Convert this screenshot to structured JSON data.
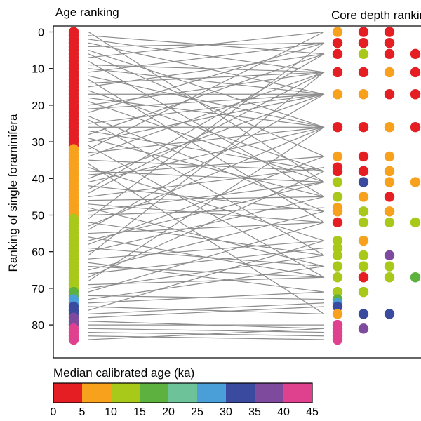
{
  "chart_data": {
    "type": "scatter",
    "title_left": "Age ranking",
    "title_right": "Core depth ranking",
    "ylabel": "Ranking of single foraminifera",
    "ylim": [
      -1,
      86
    ],
    "yticks": [
      0,
      10,
      20,
      30,
      40,
      50,
      60,
      70,
      80
    ],
    "age_rank_count": 85,
    "age_bins": [
      {
        "from": 0,
        "to": 31,
        "color": "#e41e22"
      },
      {
        "from": 32,
        "to": 50,
        "color": "#f7a11d"
      },
      {
        "from": 51,
        "to": 70,
        "color": "#a8c91a"
      },
      {
        "from": 71,
        "to": 72,
        "color": "#5db13e"
      },
      {
        "from": 73,
        "to": 74,
        "color": "#4a9fd8"
      },
      {
        "from": 75,
        "to": 77,
        "color": "#3a4a9e"
      },
      {
        "from": 78,
        "to": 80,
        "color": "#7d4a9e"
      },
      {
        "from": 81,
        "to": 84,
        "color": "#e0418f"
      }
    ],
    "depth_ranks": [
      {
        "rank": 0,
        "colors": [
          "#f7a11d",
          "#e41e22",
          "#e41e22"
        ]
      },
      {
        "rank": 3,
        "colors": [
          "#e41e22",
          "#e41e22",
          "#e41e22"
        ]
      },
      {
        "rank": 6,
        "colors": [
          "#e41e22",
          "#a8c91a",
          "#e41e22",
          "#e41e22"
        ]
      },
      {
        "rank": 11,
        "colors": [
          "#e41e22",
          "#e41e22",
          "#f7a11d",
          "#e41e22"
        ]
      },
      {
        "rank": 17,
        "colors": [
          "#f7a11d",
          "#f7a11d",
          "#e41e22",
          "#e41e22"
        ]
      },
      {
        "rank": 26,
        "colors": [
          "#e41e22",
          "#e41e22",
          "#f7a11d",
          "#e41e22"
        ]
      },
      {
        "rank": 34,
        "colors": [
          "#f7a11d",
          "#e41e22",
          "#f7a11d"
        ]
      },
      {
        "rank": 37,
        "colors": [
          "#e41e22"
        ]
      },
      {
        "rank": 38,
        "colors": [
          "#e41e22",
          "#e41e22",
          "#f7a11d"
        ]
      },
      {
        "rank": 41,
        "colors": [
          "#a8c91a",
          "#3a4a9e",
          "#f7a11d",
          "#f7a11d"
        ]
      },
      {
        "rank": 45,
        "colors": [
          "#a8c91a",
          "#f7a11d",
          "#e41e22"
        ]
      },
      {
        "rank": 48,
        "colors": [
          "#f7a11d"
        ]
      },
      {
        "rank": 49,
        "colors": [
          "#f7a11d",
          "#a8c91a",
          "#f7a11d"
        ]
      },
      {
        "rank": 52,
        "colors": [
          "#e41e22",
          "#a8c91a",
          "#a8c91a",
          "#a8c91a"
        ]
      },
      {
        "rank": 57,
        "colors": [
          "#a8c91a",
          "#f7a11d"
        ]
      },
      {
        "rank": 59,
        "colors": [
          "#a8c91a"
        ]
      },
      {
        "rank": 61,
        "colors": [
          "#a8c91a",
          "#a8c91a",
          "#7d4a9e"
        ]
      },
      {
        "rank": 64,
        "colors": [
          "#a8c91a",
          "#a8c91a",
          "#a8c91a"
        ]
      },
      {
        "rank": 67,
        "colors": [
          "#a8c91a",
          "#e41e22",
          "#a8c91a",
          "#5db13e"
        ]
      },
      {
        "rank": 71,
        "colors": [
          "#a8c91a",
          "#a8c91a"
        ]
      },
      {
        "rank": 73,
        "colors": [
          "#5db13e"
        ]
      },
      {
        "rank": 74,
        "colors": [
          "#4a9fd8"
        ]
      },
      {
        "rank": 75,
        "colors": [
          "#3a4a9e"
        ]
      },
      {
        "rank": 77,
        "colors": [
          "#f7a11d",
          "#3a4a9e",
          "#3a4a9e"
        ]
      },
      {
        "rank": 80,
        "colors": [
          "#e0418f"
        ]
      },
      {
        "rank": 81,
        "colors": [
          "#e0418f",
          "#7d4a9e"
        ]
      },
      {
        "rank": 82,
        "colors": [
          "#e0418f"
        ]
      },
      {
        "rank": 83,
        "colors": [
          "#e0418f"
        ]
      },
      {
        "rank": 84,
        "colors": [
          "#e0418f"
        ]
      }
    ],
    "connections": [
      [
        0,
        41
      ],
      [
        1,
        6
      ],
      [
        2,
        11
      ],
      [
        3,
        17
      ],
      [
        4,
        3
      ],
      [
        5,
        26
      ],
      [
        6,
        34
      ],
      [
        7,
        0
      ],
      [
        8,
        45
      ],
      [
        9,
        11
      ],
      [
        10,
        17
      ],
      [
        11,
        3
      ],
      [
        12,
        26
      ],
      [
        13,
        52
      ],
      [
        14,
        11
      ],
      [
        15,
        6
      ],
      [
        16,
        38
      ],
      [
        17,
        17
      ],
      [
        18,
        26
      ],
      [
        19,
        41
      ],
      [
        20,
        11
      ],
      [
        21,
        17
      ],
      [
        22,
        3
      ],
      [
        23,
        49
      ],
      [
        24,
        61
      ],
      [
        25,
        17
      ],
      [
        26,
        26
      ],
      [
        27,
        38
      ],
      [
        28,
        6
      ],
      [
        29,
        45
      ],
      [
        30,
        17
      ],
      [
        31,
        67
      ],
      [
        32,
        0
      ],
      [
        33,
        26
      ],
      [
        34,
        11
      ],
      [
        35,
        38
      ],
      [
        36,
        77
      ],
      [
        37,
        57
      ],
      [
        38,
        41
      ],
      [
        39,
        34
      ],
      [
        40,
        17
      ],
      [
        41,
        26
      ],
      [
        42,
        49
      ],
      [
        43,
        6
      ],
      [
        44,
        11
      ],
      [
        45,
        37
      ],
      [
        46,
        45
      ],
      [
        47,
        52
      ],
      [
        48,
        64
      ],
      [
        49,
        41
      ],
      [
        50,
        48
      ],
      [
        51,
        3
      ],
      [
        52,
        61
      ],
      [
        53,
        26
      ],
      [
        54,
        17
      ],
      [
        55,
        52
      ],
      [
        56,
        67
      ],
      [
        57,
        41
      ],
      [
        58,
        34
      ],
      [
        59,
        64
      ],
      [
        60,
        45
      ],
      [
        61,
        11
      ],
      [
        62,
        57
      ],
      [
        63,
        71
      ],
      [
        64,
        67
      ],
      [
        65,
        49
      ],
      [
        66,
        59
      ],
      [
        67,
        38
      ],
      [
        68,
        26
      ],
      [
        69,
        67
      ],
      [
        70,
        61
      ],
      [
        71,
        52
      ],
      [
        72,
        73
      ],
      [
        73,
        64
      ],
      [
        74,
        71
      ],
      [
        75,
        77
      ],
      [
        76,
        57
      ],
      [
        77,
        74
      ],
      [
        78,
        75
      ],
      [
        79,
        81
      ],
      [
        80,
        80
      ],
      [
        81,
        82
      ],
      [
        82,
        83
      ],
      [
        83,
        84
      ],
      [
        84,
        81
      ]
    ],
    "colorbar": {
      "title": "Median calibrated age (ka)",
      "colors": [
        "#e41e22",
        "#f7a11d",
        "#a8c91a",
        "#5db13e",
        "#6dc29a",
        "#4a9fd8",
        "#3a4a9e",
        "#7d4a9e",
        "#e0418f"
      ],
      "ticks": [
        "0",
        "5",
        "10",
        "15",
        "20",
        "25",
        "30",
        "35",
        "40",
        "45"
      ]
    }
  }
}
